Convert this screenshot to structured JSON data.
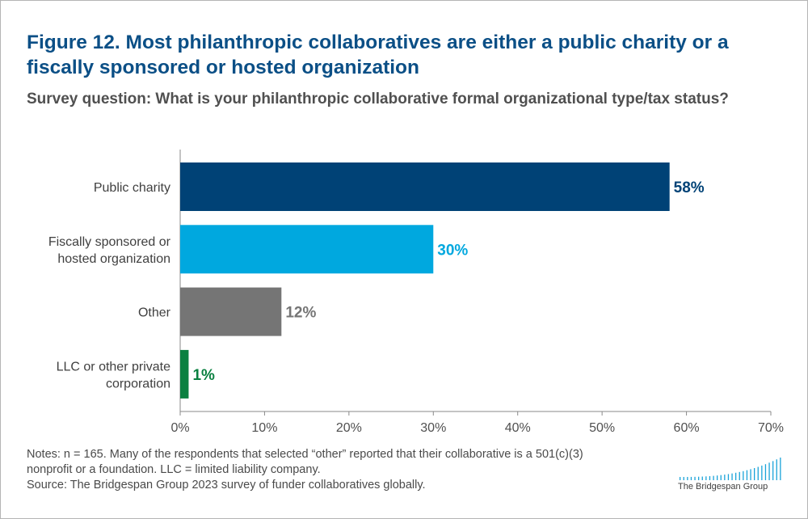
{
  "title": "Figure 12. Most philanthropic collaboratives are either a public charity or a fiscally sponsored or hosted organization",
  "subtitle": "Survey question: What is your philanthropic collaborative formal organizational type/tax status?",
  "notes": [
    "Notes: n = 165. Many of the respondents that selected “other” reported that their collaborative is a 501(c)(3)",
    "nonprofit or a foundation. LLC = limited liability company.",
    "Source: The Bridgespan Group 2023 survey of funder collaboratives globally."
  ],
  "logo": {
    "text": "The Bridgespan Group"
  },
  "chart_data": {
    "type": "bar",
    "orientation": "horizontal",
    "categories": [
      [
        "Public charity"
      ],
      [
        "Fiscally sponsored or",
        "hosted organization"
      ],
      [
        "Other"
      ],
      [
        "LLC or other private",
        "corporation"
      ]
    ],
    "values": [
      58,
      30,
      12,
      1
    ],
    "value_labels": [
      "58%",
      "30%",
      "12%",
      "1%"
    ],
    "colors": [
      "#004276",
      "#00a8df",
      "#757575",
      "#0a8040"
    ],
    "xlim": [
      0,
      70
    ],
    "xticks": [
      0,
      10,
      20,
      30,
      40,
      50,
      60,
      70
    ],
    "xtick_labels": [
      "0%",
      "10%",
      "20%",
      "30%",
      "40%",
      "50%",
      "60%",
      "70%"
    ],
    "grid": false,
    "legend": "none"
  }
}
